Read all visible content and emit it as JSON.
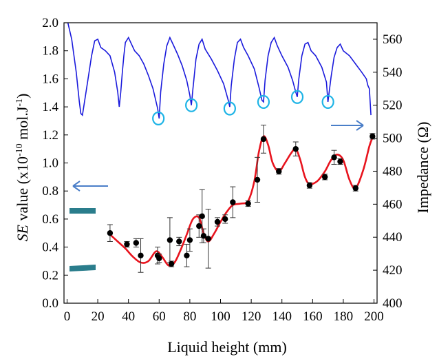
{
  "chart_data": {
    "type": "scatter",
    "xlabel": "Liquid height (mm)",
    "ylabel_left_parts": {
      "italic": "SE",
      "main": " value (x10",
      "exp1": "-10",
      "mid": " mol.J",
      "exp2": "-1",
      "end": ")"
    },
    "ylabel_right": "Impedance (Ω)",
    "xlim": [
      -2,
      202
    ],
    "ylim_left": [
      0.0,
      2.0
    ],
    "ylim_right": [
      400,
      570
    ],
    "x_ticks": [
      "0",
      "20",
      "40",
      "60",
      "80",
      "100",
      "120",
      "140",
      "160",
      "180",
      "200"
    ],
    "y_left_ticks": [
      "0.0",
      "0.2",
      "0.4",
      "0.6",
      "0.8",
      "1.0",
      "1.2",
      "1.4",
      "1.6",
      "1.8",
      "2.0"
    ],
    "y_right_ticks": [
      "400",
      "420",
      "440",
      "460",
      "480",
      "500",
      "520",
      "540",
      "560"
    ],
    "grid": false,
    "se_points": [
      {
        "x": 28,
        "y": 0.5,
        "err": 0.06
      },
      {
        "x": 39,
        "y": 0.42,
        "err": 0.02
      },
      {
        "x": 45,
        "y": 0.43,
        "err": 0.03
      },
      {
        "x": 48,
        "y": 0.34,
        "err": 0.12
      },
      {
        "x": 59,
        "y": 0.34,
        "err": 0.06
      },
      {
        "x": 60,
        "y": 0.32,
        "err": 0.03
      },
      {
        "x": 67,
        "y": 0.45,
        "err": 0.16
      },
      {
        "x": 68,
        "y": 0.28,
        "err": 0.02
      },
      {
        "x": 73,
        "y": 0.44,
        "err": 0.03
      },
      {
        "x": 78,
        "y": 0.34,
        "err": 0.08
      },
      {
        "x": 80,
        "y": 0.45,
        "err": 0.08
      },
      {
        "x": 86,
        "y": 0.55,
        "err": 0.08
      },
      {
        "x": 88,
        "y": 0.62,
        "err": 0.19
      },
      {
        "x": 89,
        "y": 0.48,
        "err": 0.05
      },
      {
        "x": 92,
        "y": 0.46,
        "err": 0.21
      },
      {
        "x": 98,
        "y": 0.58,
        "err": 0.03
      },
      {
        "x": 103,
        "y": 0.6,
        "err": 0.03
      },
      {
        "x": 108,
        "y": 0.72,
        "err": 0.11
      },
      {
        "x": 118,
        "y": 0.71,
        "err": 0.02
      },
      {
        "x": 124,
        "y": 0.88,
        "err": 0.16
      },
      {
        "x": 128,
        "y": 1.17,
        "err": 0.1
      },
      {
        "x": 138,
        "y": 0.94,
        "err": 0.02
      },
      {
        "x": 149,
        "y": 1.1,
        "err": 0.05
      },
      {
        "x": 158,
        "y": 0.84,
        "err": 0.02
      },
      {
        "x": 168,
        "y": 0.9,
        "err": 0.02
      },
      {
        "x": 174,
        "y": 1.04,
        "err": 0.05
      },
      {
        "x": 178,
        "y": 1.01,
        "err": 0.02
      },
      {
        "x": 188,
        "y": 0.82,
        "err": 0.02
      },
      {
        "x": 199,
        "y": 1.19,
        "err": 0.02
      }
    ],
    "se_fit_curve": [
      [
        28,
        0.49
      ],
      [
        33,
        0.44
      ],
      [
        38,
        0.39
      ],
      [
        43,
        0.33
      ],
      [
        48,
        0.29
      ],
      [
        53,
        0.3
      ],
      [
        58,
        0.37
      ],
      [
        62,
        0.33
      ],
      [
        66,
        0.27
      ],
      [
        70,
        0.29
      ],
      [
        74,
        0.38
      ],
      [
        78,
        0.49
      ],
      [
        82,
        0.6
      ],
      [
        86,
        0.61
      ],
      [
        89,
        0.5
      ],
      [
        92,
        0.44
      ],
      [
        96,
        0.5
      ],
      [
        100,
        0.58
      ],
      [
        104,
        0.65
      ],
      [
        108,
        0.7
      ],
      [
        113,
        0.71
      ],
      [
        118,
        0.73
      ],
      [
        122,
        0.87
      ],
      [
        125,
        1.08
      ],
      [
        128,
        1.19
      ],
      [
        131,
        1.13
      ],
      [
        134,
        1.0
      ],
      [
        138,
        0.94
      ],
      [
        142,
        1.0
      ],
      [
        146,
        1.07
      ],
      [
        149,
        1.1
      ],
      [
        152,
        1.02
      ],
      [
        155,
        0.9
      ],
      [
        158,
        0.85
      ],
      [
        163,
        0.87
      ],
      [
        168,
        0.94
      ],
      [
        172,
        1.02
      ],
      [
        176,
        1.06
      ],
      [
        180,
        1.02
      ],
      [
        184,
        0.88
      ],
      [
        188,
        0.82
      ],
      [
        193,
        0.95
      ],
      [
        197,
        1.12
      ],
      [
        199,
        1.18
      ]
    ],
    "impedance_curve": [
      [
        0,
        572
      ],
      [
        3,
        560
      ],
      [
        6,
        540
      ],
      [
        8,
        522
      ],
      [
        9,
        515
      ],
      [
        10,
        514
      ],
      [
        13,
        532
      ],
      [
        16,
        550
      ],
      [
        18,
        559
      ],
      [
        20,
        560
      ],
      [
        22,
        555
      ],
      [
        25,
        553
      ],
      [
        28,
        550
      ],
      [
        31,
        540
      ],
      [
        33,
        528
      ],
      [
        34,
        519
      ],
      [
        35,
        528
      ],
      [
        36,
        540
      ],
      [
        37,
        550
      ],
      [
        38,
        558
      ],
      [
        40,
        561
      ],
      [
        42,
        557
      ],
      [
        44,
        553
      ],
      [
        47,
        550
      ],
      [
        50,
        545
      ],
      [
        53,
        538
      ],
      [
        56,
        530
      ],
      [
        59,
        518
      ],
      [
        60,
        512
      ],
      [
        61,
        528
      ],
      [
        63,
        545
      ],
      [
        65,
        556
      ],
      [
        67,
        561
      ],
      [
        69,
        557
      ],
      [
        72,
        551
      ],
      [
        75,
        544
      ],
      [
        78,
        535
      ],
      [
        80,
        526
      ],
      [
        81,
        520
      ],
      [
        82,
        530
      ],
      [
        84,
        548
      ],
      [
        86,
        557
      ],
      [
        88,
        560
      ],
      [
        90,
        554
      ],
      [
        94,
        548
      ],
      [
        98,
        541
      ],
      [
        102,
        533
      ],
      [
        105,
        523
      ],
      [
        106,
        519
      ],
      [
        107,
        532
      ],
      [
        109,
        548
      ],
      [
        111,
        558
      ],
      [
        113,
        560
      ],
      [
        115,
        555
      ],
      [
        118,
        550
      ],
      [
        122,
        542
      ],
      [
        125,
        531
      ],
      [
        127,
        523
      ],
      [
        128,
        522
      ],
      [
        129,
        535
      ],
      [
        131,
        550
      ],
      [
        133,
        558
      ],
      [
        135,
        561
      ],
      [
        137,
        556
      ],
      [
        140,
        550
      ],
      [
        144,
        543
      ],
      [
        147,
        535
      ],
      [
        149,
        528
      ],
      [
        150,
        525
      ],
      [
        151,
        536
      ],
      [
        153,
        550
      ],
      [
        155,
        557
      ],
      [
        157,
        558
      ],
      [
        159,
        553
      ],
      [
        162,
        550
      ],
      [
        166,
        543
      ],
      [
        169,
        534
      ],
      [
        170,
        522
      ],
      [
        172,
        537
      ],
      [
        174,
        549
      ],
      [
        176,
        555
      ],
      [
        178,
        557
      ],
      [
        180,
        553
      ],
      [
        184,
        550
      ],
      [
        188,
        545
      ],
      [
        192,
        540
      ],
      [
        195,
        536
      ],
      [
        196,
        532
      ],
      [
        197,
        530
      ],
      [
        198,
        514
      ]
    ],
    "circled_minima": [
      {
        "x": 59.5,
        "y_imp": 512
      },
      {
        "x": 81,
        "y_imp": 520
      },
      {
        "x": 106,
        "y_imp": 518
      },
      {
        "x": 128,
        "y_imp": 522
      },
      {
        "x": 150,
        "y_imp": 525
      },
      {
        "x": 170,
        "y_imp": 522
      }
    ],
    "colors": {
      "impedance": "#1a1adc",
      "fit": "#e8141e",
      "points": "#000000",
      "circles": "#1eb4e6",
      "arrows": "#4a7ec8",
      "markers": "#2a7d8c"
    }
  }
}
